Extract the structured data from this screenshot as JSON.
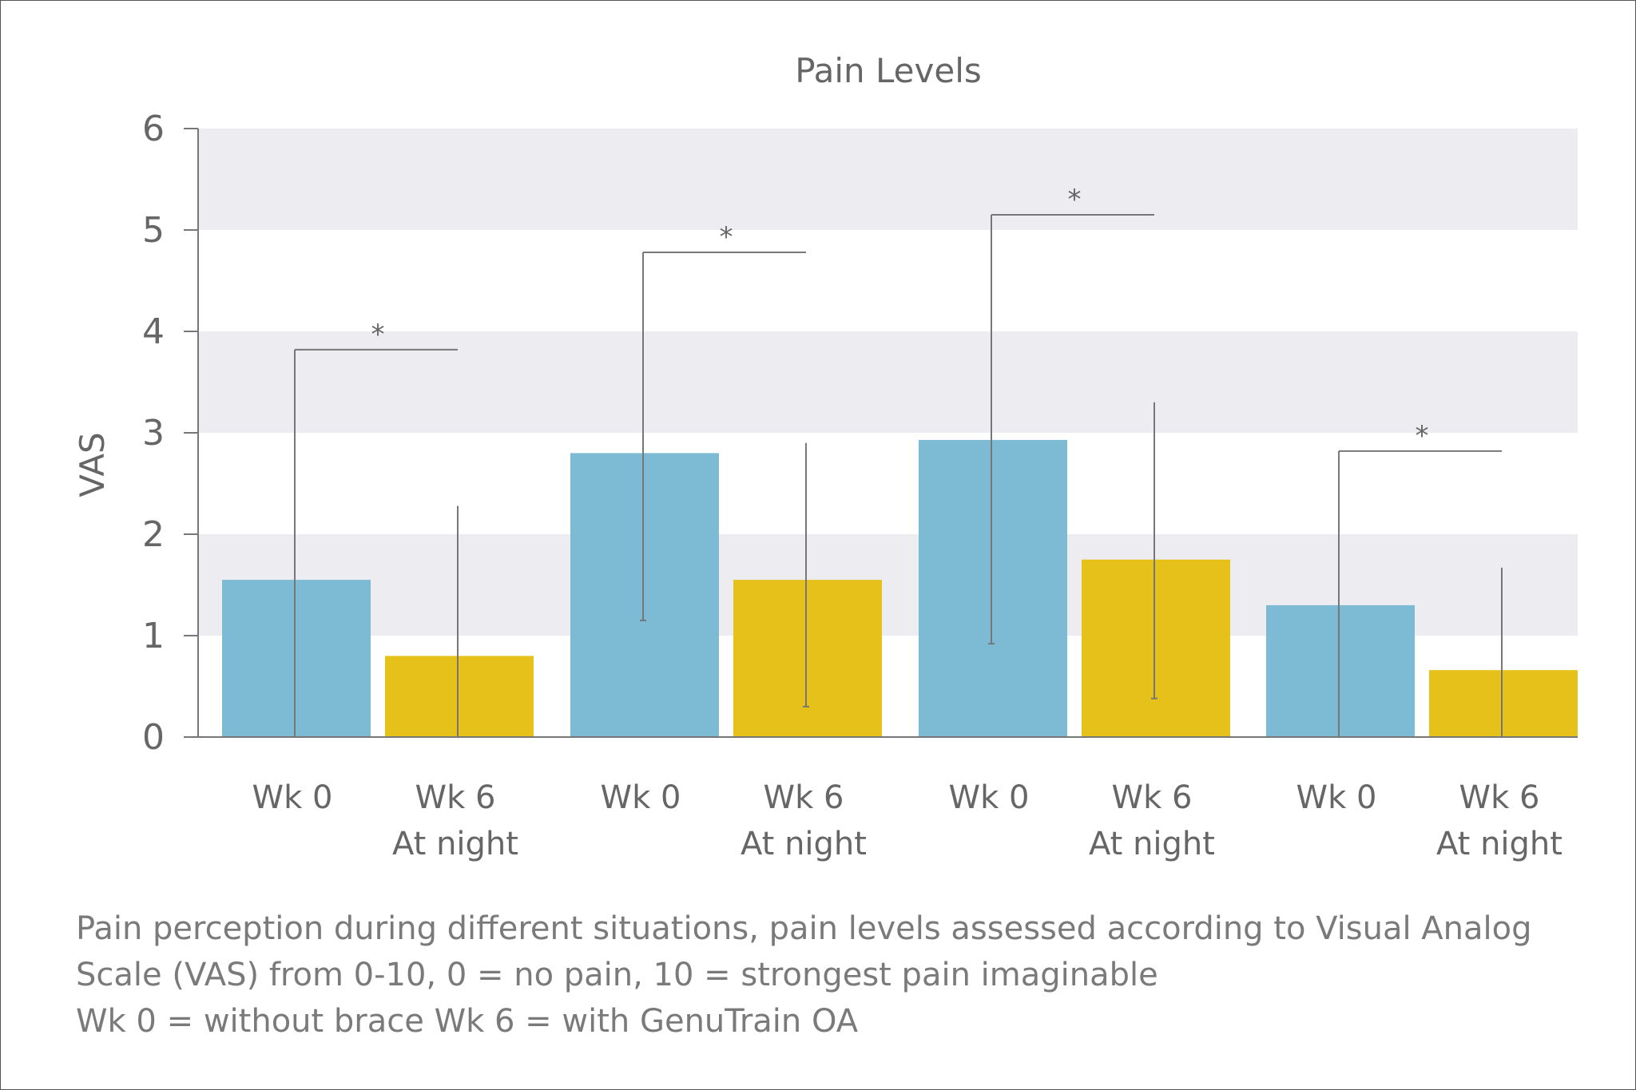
{
  "chart_data": {
    "type": "bar",
    "title": "Pain Levels",
    "ylabel": "VAS",
    "ylim": [
      0,
      6
    ],
    "yticks": [
      "0",
      "1",
      "2",
      "3",
      "4",
      "5",
      "6"
    ],
    "groups": [
      {
        "bars": [
          {
            "line1": "Wk 0",
            "line2": "",
            "series": "Wk 0",
            "value": 1.55,
            "err_low": 0.0,
            "err_high": 3.82
          },
          {
            "line1": "Wk 6",
            "line2": "At night",
            "series": "Wk 6",
            "value": 0.8,
            "err_low": 0.0,
            "err_high": 2.28
          }
        ],
        "significance": "*"
      },
      {
        "bars": [
          {
            "line1": "Wk 0",
            "line2": "",
            "series": "Wk 0",
            "value": 2.8,
            "err_low": 1.15,
            "err_high": 4.78
          },
          {
            "line1": "Wk 6",
            "line2": "At night",
            "series": "Wk 6",
            "value": 1.55,
            "err_low": 0.3,
            "err_high": 2.9
          }
        ],
        "significance": "*"
      },
      {
        "bars": [
          {
            "line1": "Wk 0",
            "line2": "",
            "series": "Wk 0",
            "value": 2.93,
            "err_low": 0.92,
            "err_high": 5.15
          },
          {
            "line1": "Wk 6",
            "line2": "At night",
            "series": "Wk 6",
            "value": 1.75,
            "err_low": 0.38,
            "err_high": 3.3
          }
        ],
        "significance": "*"
      },
      {
        "bars": [
          {
            "line1": "Wk 0",
            "line2": "",
            "series": "Wk 0",
            "value": 1.3,
            "err_low": 0.0,
            "err_high": 2.82
          },
          {
            "line1": "Wk 6",
            "line2": "At night",
            "series": "Wk 6",
            "value": 0.66,
            "err_low": 0.0,
            "err_high": 1.67
          }
        ],
        "significance": "*"
      }
    ],
    "colors": {
      "Wk 0": "#7dbad4",
      "Wk 6": "#e6c11a",
      "band": "#ececf1",
      "axis": "#777777",
      "error": "#777777"
    },
    "grid": "alternating horizontal bands"
  },
  "caption": {
    "line1": "Pain perception during different situations, pain levels assessed according to Visual Analog",
    "line2": "Scale (VAS) from 0-10, 0 = no pain, 10 = strongest pain imaginable",
    "line3": "Wk 0 = without brace   Wk 6 = with GenuTrain OA"
  }
}
